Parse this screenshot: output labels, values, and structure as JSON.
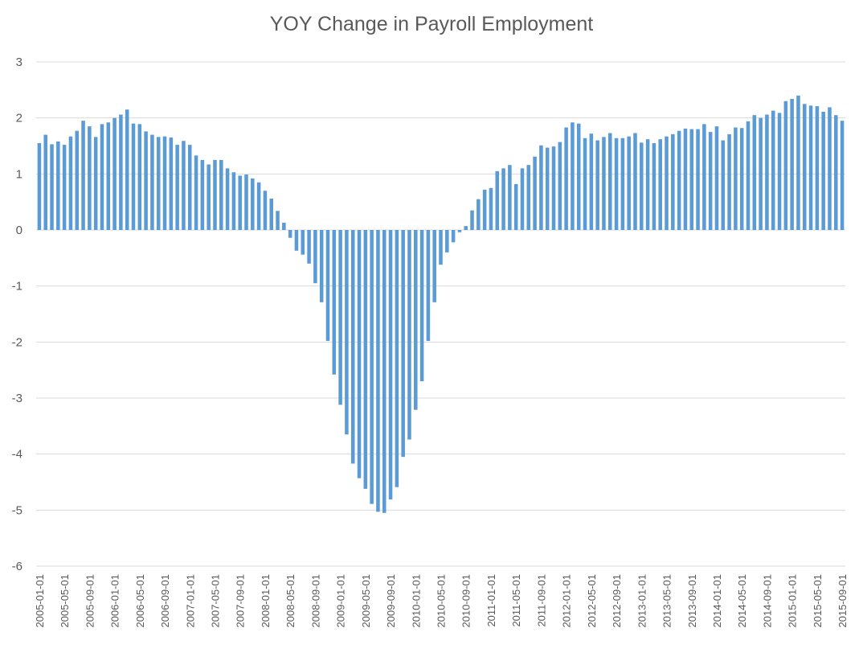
{
  "chart_data": {
    "type": "bar",
    "title": "YOY Change in Payroll Employment",
    "xlabel": "",
    "ylabel": "",
    "ylim": [
      -6,
      3
    ],
    "yticks": [
      "3",
      "2",
      "1",
      "0",
      "-1",
      "-2",
      "-3",
      "-4",
      "-5",
      "-6"
    ],
    "grid": true,
    "legend": "none",
    "bar_color": "#5b9bd5",
    "tick_labels": [
      "2005-01-01",
      "2005-05-01",
      "2005-09-01",
      "2006-01-01",
      "2006-05-01",
      "2006-09-01",
      "2007-01-01",
      "2007-05-01",
      "2007-09-01",
      "2008-01-01",
      "2008-05-01",
      "2008-09-01",
      "2009-01-01",
      "2009-05-01",
      "2009-09-01",
      "2010-01-01",
      "2010-05-01",
      "2010-09-01",
      "2011-01-01",
      "2011-05-01",
      "2011-09-01",
      "2012-01-01",
      "2012-05-01",
      "2012-09-01",
      "2013-01-01",
      "2013-05-01",
      "2013-09-01",
      "2014-01-01",
      "2014-05-01",
      "2014-09-01",
      "2015-01-01",
      "2015-05-01",
      "2015-09-01"
    ],
    "categories": [
      "2005-01",
      "2005-02",
      "2005-03",
      "2005-04",
      "2005-05",
      "2005-06",
      "2005-07",
      "2005-08",
      "2005-09",
      "2005-10",
      "2005-11",
      "2005-12",
      "2006-01",
      "2006-02",
      "2006-03",
      "2006-04",
      "2006-05",
      "2006-06",
      "2006-07",
      "2006-08",
      "2006-09",
      "2006-10",
      "2006-11",
      "2006-12",
      "2007-01",
      "2007-02",
      "2007-03",
      "2007-04",
      "2007-05",
      "2007-06",
      "2007-07",
      "2007-08",
      "2007-09",
      "2007-10",
      "2007-11",
      "2007-12",
      "2008-01",
      "2008-02",
      "2008-03",
      "2008-04",
      "2008-05",
      "2008-06",
      "2008-07",
      "2008-08",
      "2008-09",
      "2008-10",
      "2008-11",
      "2008-12",
      "2009-01",
      "2009-02",
      "2009-03",
      "2009-04",
      "2009-05",
      "2009-06",
      "2009-07",
      "2009-08",
      "2009-09",
      "2009-10",
      "2009-11",
      "2009-12",
      "2010-01",
      "2010-02",
      "2010-03",
      "2010-04",
      "2010-05",
      "2010-06",
      "2010-07",
      "2010-08",
      "2010-09",
      "2010-10",
      "2010-11",
      "2010-12",
      "2011-01",
      "2011-02",
      "2011-03",
      "2011-04",
      "2011-05",
      "2011-06",
      "2011-07",
      "2011-08",
      "2011-09",
      "2011-10",
      "2011-11",
      "2011-12",
      "2012-01",
      "2012-02",
      "2012-03",
      "2012-04",
      "2012-05",
      "2012-06",
      "2012-07",
      "2012-08",
      "2012-09",
      "2012-10",
      "2012-11",
      "2012-12",
      "2013-01",
      "2013-02",
      "2013-03",
      "2013-04",
      "2013-05",
      "2013-06",
      "2013-07",
      "2013-08",
      "2013-09",
      "2013-10",
      "2013-11",
      "2013-12",
      "2014-01",
      "2014-02",
      "2014-03",
      "2014-04",
      "2014-05",
      "2014-06",
      "2014-07",
      "2014-08",
      "2014-09",
      "2014-10",
      "2014-11",
      "2014-12",
      "2015-01",
      "2015-02",
      "2015-03",
      "2015-04",
      "2015-05",
      "2015-06",
      "2015-07",
      "2015-08",
      "2015-09"
    ],
    "values": [
      1.55,
      1.7,
      1.53,
      1.58,
      1.52,
      1.67,
      1.77,
      1.95,
      1.85,
      1.66,
      1.89,
      1.92,
      2.0,
      2.06,
      2.15,
      1.9,
      1.89,
      1.76,
      1.7,
      1.66,
      1.67,
      1.65,
      1.52,
      1.59,
      1.52,
      1.33,
      1.25,
      1.17,
      1.25,
      1.25,
      1.1,
      1.03,
      0.97,
      0.99,
      0.92,
      0.85,
      0.7,
      0.56,
      0.34,
      0.13,
      -0.14,
      -0.37,
      -0.44,
      -0.6,
      -0.95,
      -1.29,
      -1.98,
      -2.58,
      -3.12,
      -3.65,
      -4.17,
      -4.43,
      -4.62,
      -4.89,
      -5.03,
      -5.05,
      -4.81,
      -4.59,
      -4.05,
      -3.74,
      -3.21,
      -2.7,
      -1.98,
      -1.29,
      -0.62,
      -0.4,
      -0.22,
      -0.04,
      0.07,
      0.35,
      0.55,
      0.72,
      0.75,
      1.05,
      1.1,
      1.16,
      0.82,
      1.1,
      1.16,
      1.31,
      1.51,
      1.47,
      1.49,
      1.57,
      1.83,
      1.92,
      1.9,
      1.64,
      1.72,
      1.6,
      1.66,
      1.73,
      1.64,
      1.64,
      1.67,
      1.73,
      1.56,
      1.62,
      1.55,
      1.62,
      1.67,
      1.71,
      1.77,
      1.81,
      1.8,
      1.8,
      1.89,
      1.75,
      1.85,
      1.6,
      1.71,
      1.83,
      1.82,
      1.94,
      2.05,
      2.0,
      2.06,
      2.13,
      2.09,
      2.3,
      2.34,
      2.4,
      2.25,
      2.22,
      2.21,
      2.11,
      2.19,
      2.05,
      1.95
    ]
  }
}
